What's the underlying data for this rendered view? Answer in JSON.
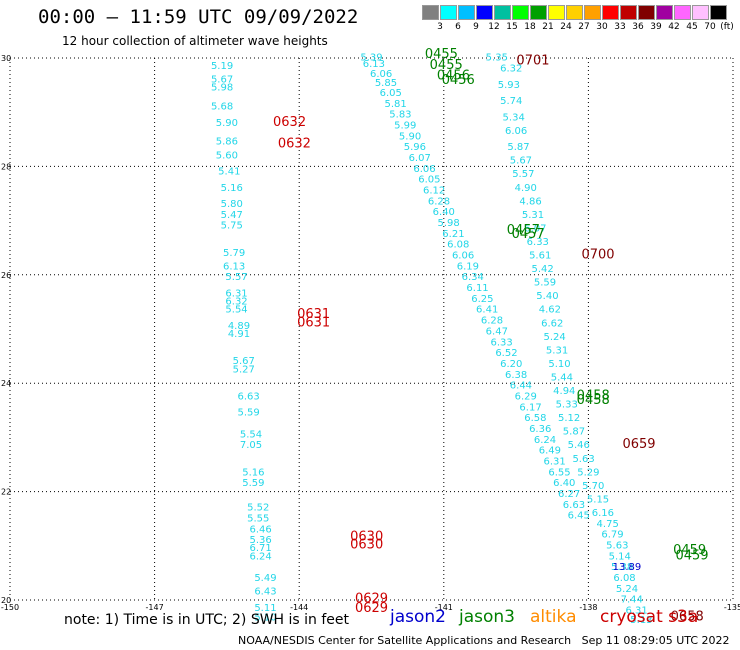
{
  "header": {
    "title": "00:00 — 11:59 UTC 09/09/2022",
    "subtitle": "12 hour collection of altimeter wave heights"
  },
  "colorbar": {
    "labels": [
      "3",
      "6",
      "9",
      "12",
      "15",
      "18",
      "21",
      "24",
      "27",
      "30",
      "33",
      "36",
      "39",
      "42",
      "45",
      "70"
    ],
    "colors": [
      "#808080",
      "#00ffff",
      "#00bfff",
      "#0000ff",
      "#00c0a0",
      "#00ff00",
      "#00a000",
      "#ffff00",
      "#ffd000",
      "#ffa000",
      "#ff0000",
      "#c00000",
      "#800000",
      "#a000a0",
      "#ff66ff",
      "#ffc0ff",
      "#000000"
    ],
    "unit": "(ft)"
  },
  "note": "note: 1) Time is in UTC; 2) SWH is in feet",
  "legend": [
    {
      "name": "jason2",
      "color": "#0000cc"
    },
    {
      "name": "jason3",
      "color": "#008000"
    },
    {
      "name": "altika",
      "color": "#ff8c00"
    },
    {
      "name": "cryosat s3a",
      "color": "#cc0000"
    }
  ],
  "footer": "NOAA/NESDIS Center for Satellite Applications and Research   Sep 11 08:29:05 UTC 2022",
  "chart_data": {
    "type": "scatter",
    "xlim": [
      -150,
      -135
    ],
    "ylim": [
      20,
      30
    ],
    "xticks": [
      "-150",
      "-147",
      "-144",
      "-141",
      "-138",
      "-135"
    ],
    "yticks": [
      "20",
      "22",
      "24",
      "26",
      "28",
      "30"
    ],
    "grid": true,
    "points": [
      {
        "x": -145.6,
        "y": 29.8,
        "t": "5.19"
      },
      {
        "x": -145.6,
        "y": 29.55,
        "t": "5.67"
      },
      {
        "x": -145.6,
        "y": 29.4,
        "t": "5.98"
      },
      {
        "x": -145.6,
        "y": 29.05,
        "t": "5.68"
      },
      {
        "x": -145.5,
        "y": 28.75,
        "t": "5.90"
      },
      {
        "x": -145.5,
        "y": 28.4,
        "t": "5.86"
      },
      {
        "x": -145.5,
        "y": 28.15,
        "t": "5.60"
      },
      {
        "x": -145.45,
        "y": 27.85,
        "t": "5.41"
      },
      {
        "x": -145.4,
        "y": 27.55,
        "t": "5.16"
      },
      {
        "x": -145.4,
        "y": 27.25,
        "t": "5.80"
      },
      {
        "x": -145.4,
        "y": 27.05,
        "t": "5.47"
      },
      {
        "x": -145.4,
        "y": 26.85,
        "t": "5.75"
      },
      {
        "x": -145.35,
        "y": 26.35,
        "t": "5.79"
      },
      {
        "x": -145.35,
        "y": 26.1,
        "t": "6.13"
      },
      {
        "x": -145.3,
        "y": 25.9,
        "t": "5.57"
      },
      {
        "x": -145.3,
        "y": 25.6,
        "t": "6.31"
      },
      {
        "x": -145.3,
        "y": 25.45,
        "t": "6.32"
      },
      {
        "x": -145.3,
        "y": 25.3,
        "t": "5.54"
      },
      {
        "x": -145.25,
        "y": 25.0,
        "t": "4.89"
      },
      {
        "x": -145.25,
        "y": 24.85,
        "t": "4.91"
      },
      {
        "x": -145.15,
        "y": 24.35,
        "t": "5.67"
      },
      {
        "x": -145.15,
        "y": 24.2,
        "t": "5.27"
      },
      {
        "x": -145.05,
        "y": 23.7,
        "t": "6.63"
      },
      {
        "x": -145.05,
        "y": 23.4,
        "t": "5.59"
      },
      {
        "x": -145.0,
        "y": 23.0,
        "t": "5.54"
      },
      {
        "x": -145.0,
        "y": 22.8,
        "t": "7.05"
      },
      {
        "x": -144.95,
        "y": 22.3,
        "t": "5.16"
      },
      {
        "x": -144.95,
        "y": 22.1,
        "t": "5.59"
      },
      {
        "x": -144.85,
        "y": 21.65,
        "t": "5.52"
      },
      {
        "x": -144.85,
        "y": 21.45,
        "t": "5.55"
      },
      {
        "x": -144.8,
        "y": 21.25,
        "t": "6.46"
      },
      {
        "x": -144.8,
        "y": 21.05,
        "t": "5.36"
      },
      {
        "x": -144.8,
        "y": 20.9,
        "t": "6.71"
      },
      {
        "x": -144.8,
        "y": 20.75,
        "t": "6.24"
      },
      {
        "x": -144.7,
        "y": 20.35,
        "t": "5.49"
      },
      {
        "x": -144.7,
        "y": 20.1,
        "t": "6.43"
      },
      {
        "x": -144.7,
        "y": 19.8,
        "t": "5.11"
      },
      {
        "x": -144.7,
        "y": 19.62,
        "t": "5.10"
      },
      {
        "x": -142.5,
        "y": 29.95,
        "t": "5.39"
      },
      {
        "x": -142.45,
        "y": 29.83,
        "t": "6.13"
      },
      {
        "x": -142.3,
        "y": 29.65,
        "t": "6.06"
      },
      {
        "x": -142.2,
        "y": 29.48,
        "t": "5.85"
      },
      {
        "x": -142.1,
        "y": 29.3,
        "t": "6.05"
      },
      {
        "x": -142.0,
        "y": 29.1,
        "t": "5.81"
      },
      {
        "x": -141.9,
        "y": 28.9,
        "t": "5.83"
      },
      {
        "x": -141.8,
        "y": 28.7,
        "t": "5.99"
      },
      {
        "x": -141.7,
        "y": 28.5,
        "t": "5.90"
      },
      {
        "x": -141.6,
        "y": 28.3,
        "t": "5.96"
      },
      {
        "x": -141.5,
        "y": 28.1,
        "t": "6.07"
      },
      {
        "x": -141.4,
        "y": 27.9,
        "t": "6.06"
      },
      {
        "x": -141.3,
        "y": 27.7,
        "t": "6.05"
      },
      {
        "x": -141.2,
        "y": 27.5,
        "t": "6.12"
      },
      {
        "x": -141.1,
        "y": 27.3,
        "t": "6.28"
      },
      {
        "x": -141.0,
        "y": 27.1,
        "t": "6.40"
      },
      {
        "x": -140.9,
        "y": 26.9,
        "t": "5.98"
      },
      {
        "x": -140.8,
        "y": 26.7,
        "t": "6.21"
      },
      {
        "x": -140.7,
        "y": 26.5,
        "t": "6.08"
      },
      {
        "x": -140.6,
        "y": 26.3,
        "t": "6.06"
      },
      {
        "x": -140.5,
        "y": 26.1,
        "t": "6.19"
      },
      {
        "x": -140.4,
        "y": 25.9,
        "t": "6.34"
      },
      {
        "x": -140.3,
        "y": 25.7,
        "t": "6.11"
      },
      {
        "x": -140.2,
        "y": 25.5,
        "t": "6.25"
      },
      {
        "x": -140.1,
        "y": 25.3,
        "t": "6.41"
      },
      {
        "x": -140.0,
        "y": 25.1,
        "t": "6.28"
      },
      {
        "x": -139.9,
        "y": 24.9,
        "t": "6.47"
      },
      {
        "x": -139.8,
        "y": 24.7,
        "t": "6.33"
      },
      {
        "x": -139.7,
        "y": 24.5,
        "t": "6.52"
      },
      {
        "x": -139.6,
        "y": 24.3,
        "t": "6.20"
      },
      {
        "x": -139.5,
        "y": 24.1,
        "t": "6.38"
      },
      {
        "x": -139.4,
        "y": 23.9,
        "t": "6.44"
      },
      {
        "x": -139.3,
        "y": 23.7,
        "t": "6.29"
      },
      {
        "x": -139.2,
        "y": 23.5,
        "t": "6.17"
      },
      {
        "x": -139.1,
        "y": 23.3,
        "t": "6.58"
      },
      {
        "x": -139.0,
        "y": 23.1,
        "t": "6.36"
      },
      {
        "x": -138.9,
        "y": 22.9,
        "t": "6.24"
      },
      {
        "x": -138.8,
        "y": 22.7,
        "t": "6.49"
      },
      {
        "x": -138.7,
        "y": 22.5,
        "t": "6.31"
      },
      {
        "x": -138.6,
        "y": 22.3,
        "t": "6.55"
      },
      {
        "x": -138.5,
        "y": 22.1,
        "t": "6.40"
      },
      {
        "x": -138.4,
        "y": 21.9,
        "t": "6.27"
      },
      {
        "x": -138.3,
        "y": 21.7,
        "t": "6.63"
      },
      {
        "x": -138.2,
        "y": 21.5,
        "t": "6.45"
      },
      {
        "x": -139.9,
        "y": 29.95,
        "t": "5.35"
      },
      {
        "x": -139.6,
        "y": 29.75,
        "t": "6.32"
      },
      {
        "x": -139.65,
        "y": 29.45,
        "t": "5.93"
      },
      {
        "x": -139.6,
        "y": 29.15,
        "t": "5.74"
      },
      {
        "x": -139.55,
        "y": 28.85,
        "t": "5.34"
      },
      {
        "x": -139.5,
        "y": 28.6,
        "t": "6.06"
      },
      {
        "x": -139.45,
        "y": 28.3,
        "t": "5.87"
      },
      {
        "x": -139.4,
        "y": 28.05,
        "t": "5.67"
      },
      {
        "x": -139.35,
        "y": 27.8,
        "t": "5.57"
      },
      {
        "x": -139.3,
        "y": 27.55,
        "t": "4.90"
      },
      {
        "x": -139.2,
        "y": 27.3,
        "t": "4.86"
      },
      {
        "x": -139.15,
        "y": 27.05,
        "t": "5.31"
      },
      {
        "x": -139.1,
        "y": 26.8,
        "t": "6.07"
      },
      {
        "x": -139.05,
        "y": 26.55,
        "t": "6.33"
      },
      {
        "x": -139.0,
        "y": 26.3,
        "t": "5.61"
      },
      {
        "x": -138.95,
        "y": 26.05,
        "t": "5.42"
      },
      {
        "x": -138.9,
        "y": 25.8,
        "t": "5.59"
      },
      {
        "x": -138.85,
        "y": 25.55,
        "t": "5.40"
      },
      {
        "x": -138.8,
        "y": 25.3,
        "t": "4.62"
      },
      {
        "x": -138.75,
        "y": 25.05,
        "t": "6.62"
      },
      {
        "x": -138.7,
        "y": 24.8,
        "t": "5.24"
      },
      {
        "x": -138.65,
        "y": 24.55,
        "t": "5.31"
      },
      {
        "x": -138.6,
        "y": 24.3,
        "t": "5.10"
      },
      {
        "x": -138.55,
        "y": 24.05,
        "t": "5.44"
      },
      {
        "x": -138.5,
        "y": 23.8,
        "t": "4.94"
      },
      {
        "x": -138.45,
        "y": 23.55,
        "t": "5.33"
      },
      {
        "x": -138.4,
        "y": 23.3,
        "t": "5.12"
      },
      {
        "x": -138.3,
        "y": 23.05,
        "t": "5.87"
      },
      {
        "x": -138.2,
        "y": 22.8,
        "t": "5.46"
      },
      {
        "x": -138.1,
        "y": 22.55,
        "t": "5.63"
      },
      {
        "x": -138.0,
        "y": 22.3,
        "t": "5.29"
      },
      {
        "x": -137.9,
        "y": 22.05,
        "t": "5.70"
      },
      {
        "x": -137.8,
        "y": 21.8,
        "t": "5.15"
      },
      {
        "x": -137.7,
        "y": 21.55,
        "t": "6.16"
      },
      {
        "x": -137.6,
        "y": 21.35,
        "t": "4.75"
      },
      {
        "x": -137.5,
        "y": 21.15,
        "t": "6.79"
      },
      {
        "x": -137.4,
        "y": 20.95,
        "t": "5.63"
      },
      {
        "x": -137.35,
        "y": 20.75,
        "t": "5.14"
      },
      {
        "x": -137.3,
        "y": 20.55,
        "t": "5.38"
      },
      {
        "x": -137.25,
        "y": 20.35,
        "t": "6.08"
      },
      {
        "x": -137.2,
        "y": 20.15,
        "t": "5.24"
      },
      {
        "x": -137.1,
        "y": 19.95,
        "t": "7.44"
      },
      {
        "x": -137.0,
        "y": 19.75,
        "t": "6.31"
      },
      {
        "x": -136.9,
        "y": 19.58,
        "t": "5.13"
      }
    ],
    "jason2_points": [
      {
        "x": -137.2,
        "y": 20.55,
        "t": "13.89"
      }
    ],
    "time_labels": [
      {
        "x": -141.05,
        "y": 30.0,
        "t": "0455",
        "c": "#008000"
      },
      {
        "x": -140.95,
        "y": 29.8,
        "t": "0455",
        "c": "#008000"
      },
      {
        "x": -140.8,
        "y": 29.6,
        "t": "0456",
        "c": "#008000"
      },
      {
        "x": -140.7,
        "y": 29.52,
        "t": "0456",
        "c": "#008000"
      },
      {
        "x": -139.15,
        "y": 29.88,
        "t": "0701",
        "c": "#800000"
      },
      {
        "x": -144.2,
        "y": 28.75,
        "t": "0632",
        "c": "#cc0000"
      },
      {
        "x": -144.1,
        "y": 28.35,
        "t": "0632",
        "c": "#cc0000"
      },
      {
        "x": -139.35,
        "y": 26.75,
        "t": "0457",
        "c": "#008000"
      },
      {
        "x": -139.25,
        "y": 26.68,
        "t": "0457",
        "c": "#008000"
      },
      {
        "x": -137.8,
        "y": 26.3,
        "t": "0700",
        "c": "#800000"
      },
      {
        "x": -143.7,
        "y": 25.2,
        "t": "0631",
        "c": "#cc0000"
      },
      {
        "x": -143.7,
        "y": 25.05,
        "t": "0631",
        "c": "#cc0000"
      },
      {
        "x": -137.9,
        "y": 23.7,
        "t": "0458",
        "c": "#008000"
      },
      {
        "x": -137.9,
        "y": 23.62,
        "t": "0458",
        "c": "#008000"
      },
      {
        "x": -136.95,
        "y": 22.8,
        "t": "0659",
        "c": "#800000"
      },
      {
        "x": -142.6,
        "y": 21.1,
        "t": "0630",
        "c": "#cc0000"
      },
      {
        "x": -142.6,
        "y": 20.95,
        "t": "0630",
        "c": "#cc0000"
      },
      {
        "x": -135.9,
        "y": 20.85,
        "t": "0459",
        "c": "#008000"
      },
      {
        "x": -135.85,
        "y": 20.75,
        "t": "0459",
        "c": "#008000"
      },
      {
        "x": -142.5,
        "y": 19.95,
        "t": "0629",
        "c": "#cc0000"
      },
      {
        "x": -142.5,
        "y": 19.78,
        "t": "0629",
        "c": "#cc0000"
      },
      {
        "x": -135.95,
        "y": 19.62,
        "t": "0658",
        "c": "#800000"
      }
    ]
  }
}
